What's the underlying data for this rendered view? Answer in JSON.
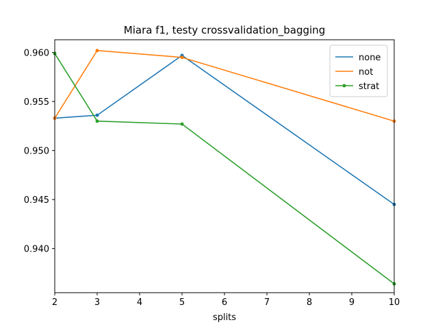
{
  "chart_data": {
    "type": "line",
    "title": "Miara f1, testy crossvalidation_bagging",
    "xlabel": "splits",
    "ylabel": "",
    "x": [
      2,
      3,
      5,
      10
    ],
    "xlim": [
      2,
      10
    ],
    "ylim": [
      0.9355,
      0.9613
    ],
    "xticks": [
      "2",
      "3",
      "4",
      "5",
      "6",
      "7",
      "8",
      "9",
      "10"
    ],
    "yticks": [
      "0.940",
      "0.945",
      "0.950",
      "0.955",
      "0.960"
    ],
    "grid": false,
    "legend_position": "top-right",
    "series": [
      {
        "name": "none",
        "color": "#1f77b4",
        "values": [
          0.9533,
          0.9536,
          0.9597,
          0.9445
        ]
      },
      {
        "name": "not",
        "color": "#ff7f0e",
        "values": [
          0.9533,
          0.9602,
          0.9595,
          0.953
        ]
      },
      {
        "name": "strat",
        "color": "#2ca02c",
        "values": [
          0.9599,
          0.953,
          0.9527,
          0.9364
        ]
      }
    ]
  }
}
